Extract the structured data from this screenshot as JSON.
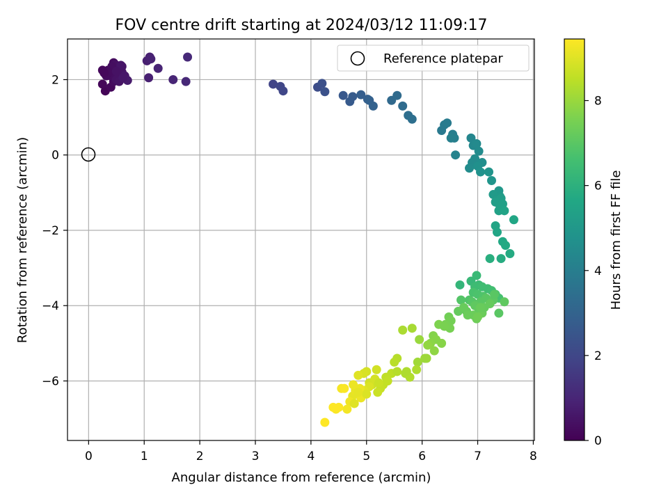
{
  "chart_data": {
    "type": "scatter",
    "title": "FOV centre drift starting at 2024/03/12 11:09:17",
    "xlabel": "Angular distance from reference (arcmin)",
    "ylabel": "Rotation from reference (arcmin)",
    "xlim": [
      -0.38,
      8.02
    ],
    "ylim": [
      -7.58,
      3.08
    ],
    "xticks": [
      0,
      1,
      2,
      3,
      4,
      5,
      6,
      7,
      8
    ],
    "yticks": [
      -6,
      -4,
      -2,
      0,
      2
    ],
    "xtick_labels": [
      "0",
      "1",
      "2",
      "3",
      "4",
      "5",
      "6",
      "7",
      "8"
    ],
    "ytick_labels": [
      "−6",
      "−4",
      "−2",
      "0",
      "2"
    ],
    "grid": true,
    "legend": {
      "position": "upper-right",
      "entries": [
        {
          "label": "Reference platepar",
          "marker": "open-circle"
        }
      ]
    },
    "reference_point": {
      "x": 0,
      "y": 0,
      "label": "Reference platepar"
    },
    "colorbar": {
      "label": "Hours from first FF file",
      "colormap": "viridis",
      "range": [
        0,
        9.45
      ],
      "ticks": [
        0,
        2,
        4,
        6,
        8
      ],
      "tick_labels": [
        "0",
        "2",
        "4",
        "6",
        "8"
      ]
    },
    "series": [
      {
        "x": [
          0.3,
          0.4,
          0.45,
          0.52,
          0.25,
          0.3,
          0.4,
          0.5,
          0.6,
          0.35,
          0.55,
          0.65,
          0.45,
          0.6,
          0.25,
          0.32,
          0.48,
          0.58,
          0.7,
          0.42,
          0.55,
          0.36,
          0.28,
          0.62,
          0.5,
          1.05,
          1.1,
          1.12,
          1.25,
          1.08,
          1.52,
          1.75,
          1.78,
          3.32,
          3.45,
          3.5,
          4.12,
          4.2,
          4.25,
          4.58,
          4.7,
          4.75,
          4.9,
          5.02,
          5.05,
          5.12,
          5.45,
          5.55,
          5.65,
          5.75,
          5.82,
          6.35,
          6.4,
          6.45,
          6.55,
          6.58,
          6.52,
          6.6,
          6.88,
          6.92,
          6.98,
          7.02,
          6.95,
          7.08,
          6.9,
          6.85,
          7.0,
          7.05,
          7.2,
          7.25,
          7.38,
          7.4,
          7.28,
          7.35,
          7.42,
          7.32,
          7.4,
          7.45,
          7.38,
          7.48,
          7.32,
          7.35,
          7.65,
          7.45,
          7.5,
          7.58,
          7.42,
          7.22,
          6.68,
          6.88,
          6.98,
          7.02,
          6.95,
          7.08,
          7.18,
          7.25,
          7.32,
          7.38,
          6.92,
          7.0,
          7.1,
          6.85,
          6.7,
          6.9,
          7.05,
          7.15,
          7.28,
          7.48,
          7.38,
          6.95,
          7.02,
          6.8,
          6.65,
          6.75,
          6.92,
          7.08,
          7.22,
          6.98,
          7.12,
          6.82,
          7.0,
          7.05,
          7.3,
          6.48,
          6.52,
          6.42,
          6.3,
          6.2,
          6.25,
          6.15,
          6.35,
          6.5,
          6.4,
          6.1,
          6.22,
          5.95,
          6.05,
          5.92,
          6.08,
          5.82,
          5.65,
          5.7,
          5.55,
          5.78,
          5.9,
          5.5,
          5.45,
          5.35,
          5.3,
          5.25,
          5.2,
          5.1,
          5.05,
          5.0,
          4.95,
          5.15,
          5.05,
          4.85,
          4.95,
          4.75,
          4.8,
          4.9,
          4.7,
          4.65,
          4.55,
          4.6,
          4.45,
          4.5,
          4.4,
          4.25,
          4.88,
          5.22,
          5.38,
          5.55,
          5.72,
          4.78,
          5.0,
          4.85,
          4.76,
          5.18
        ],
        "y": [
          1.7,
          1.8,
          1.95,
          2.05,
          1.88,
          2.15,
          2.1,
          2.0,
          2.2,
          2.25,
          2.3,
          2.1,
          2.45,
          2.35,
          2.25,
          2.1,
          2.4,
          2.38,
          1.98,
          2.35,
          1.95,
          2.2,
          2.18,
          2.05,
          2.22,
          2.5,
          2.6,
          2.55,
          2.3,
          2.05,
          2.0,
          1.95,
          2.6,
          1.88,
          1.82,
          1.7,
          1.8,
          1.9,
          1.68,
          1.58,
          1.42,
          1.55,
          1.6,
          1.48,
          1.45,
          1.3,
          1.45,
          1.58,
          1.3,
          1.05,
          0.95,
          0.65,
          0.8,
          0.85,
          0.55,
          0.45,
          0.45,
          0.0,
          0.45,
          0.25,
          0.3,
          0.1,
          -0.1,
          -0.2,
          -0.2,
          -0.35,
          -0.3,
          -0.45,
          -0.45,
          -0.68,
          -0.95,
          -1.1,
          -1.05,
          -1.18,
          -1.15,
          -1.25,
          -1.35,
          -1.3,
          -1.48,
          -1.48,
          -1.88,
          -2.05,
          -1.72,
          -2.3,
          -2.4,
          -2.62,
          -2.75,
          -2.75,
          -3.45,
          -3.35,
          -3.2,
          -3.45,
          -3.5,
          -3.5,
          -3.55,
          -3.6,
          -3.7,
          -3.8,
          -3.65,
          -3.7,
          -3.75,
          -3.85,
          -3.85,
          -3.9,
          -3.9,
          -3.8,
          -3.85,
          -3.9,
          -4.2,
          -4.0,
          -4.1,
          -4.15,
          -4.15,
          -4.05,
          -4.25,
          -4.2,
          -3.95,
          -4.35,
          -4.05,
          -4.25,
          -4.3,
          -4.05,
          -3.7,
          -4.3,
          -4.4,
          -4.5,
          -4.5,
          -4.8,
          -4.9,
          -5.0,
          -5.0,
          -4.6,
          -4.55,
          -5.05,
          -5.2,
          -4.9,
          -5.4,
          -5.5,
          -5.4,
          -4.6,
          -4.65,
          -5.8,
          -5.4,
          -5.9,
          -5.7,
          -5.5,
          -5.8,
          -5.9,
          -6.1,
          -6.2,
          -6.3,
          -6.1,
          -6.05,
          -5.75,
          -5.8,
          -5.95,
          -6.15,
          -5.85,
          -6.25,
          -6.4,
          -6.25,
          -6.45,
          -6.55,
          -6.75,
          -6.2,
          -6.2,
          -6.75,
          -6.7,
          -6.7,
          -7.1,
          -6.2,
          -6.05,
          -6.0,
          -5.75,
          -5.75,
          -6.6,
          -6.35,
          -6.3,
          -6.1,
          -5.7
        ],
        "hours": [
          0.1,
          0.2,
          0.3,
          0.4,
          0.15,
          0.25,
          0.35,
          0.45,
          0.55,
          0.2,
          0.5,
          0.6,
          0.3,
          0.5,
          0.2,
          0.3,
          0.4,
          0.55,
          0.7,
          0.35,
          0.5,
          0.3,
          0.2,
          0.6,
          0.45,
          0.8,
          0.85,
          0.9,
          0.95,
          0.85,
          1.0,
          1.05,
          1.1,
          1.9,
          1.95,
          2.0,
          2.2,
          2.3,
          2.35,
          2.6,
          2.65,
          2.7,
          2.8,
          2.85,
          2.9,
          2.95,
          3.2,
          3.25,
          3.3,
          3.4,
          3.45,
          3.8,
          3.85,
          3.9,
          4.0,
          4.05,
          4.1,
          4.2,
          4.3,
          4.4,
          4.45,
          4.5,
          4.55,
          4.6,
          4.5,
          4.55,
          4.7,
          4.75,
          4.85,
          4.9,
          5.0,
          5.05,
          5.1,
          5.15,
          5.2,
          5.25,
          5.3,
          5.35,
          5.4,
          5.45,
          5.5,
          5.55,
          5.6,
          5.65,
          5.7,
          5.75,
          5.8,
          5.9,
          6.2,
          6.3,
          6.35,
          6.4,
          6.45,
          6.5,
          6.5,
          6.55,
          6.6,
          6.65,
          6.7,
          6.75,
          6.8,
          6.85,
          6.9,
          6.95,
          7.0,
          7.0,
          7.05,
          7.1,
          7.0,
          7.1,
          7.15,
          7.2,
          7.2,
          7.25,
          7.3,
          7.3,
          7.2,
          7.35,
          7.2,
          7.3,
          7.4,
          7.25,
          7.0,
          7.4,
          7.45,
          7.5,
          7.6,
          7.7,
          7.75,
          7.8,
          7.75,
          7.5,
          7.55,
          7.9,
          7.85,
          8.0,
          8.05,
          8.1,
          8.05,
          8.2,
          8.25,
          8.3,
          8.4,
          8.35,
          8.3,
          8.45,
          8.5,
          8.55,
          8.6,
          8.65,
          8.7,
          8.75,
          8.8,
          8.85,
          8.9,
          8.85,
          8.95,
          9.0,
          9.05,
          9.1,
          9.15,
          9.2,
          9.25,
          9.3,
          9.35,
          9.4,
          9.4,
          9.45,
          9.45,
          9.45,
          9.2,
          8.7,
          8.6,
          8.4,
          8.3,
          9.0,
          8.95,
          9.1,
          9.2,
          8.8
        ]
      }
    ]
  }
}
